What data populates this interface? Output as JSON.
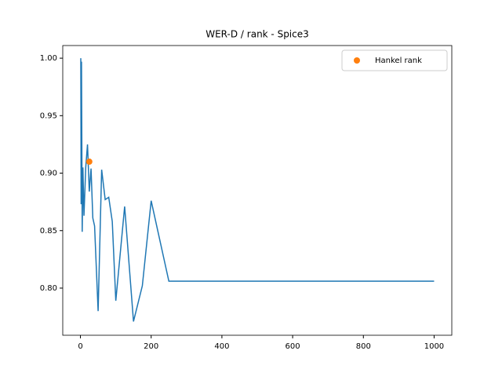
{
  "chart_data": {
    "type": "line",
    "title": "WER-D / rank - Spice3",
    "x": [
      1,
      2,
      3,
      5,
      7,
      10,
      15,
      20,
      25,
      30,
      35,
      40,
      50,
      60,
      70,
      80,
      90,
      100,
      125,
      150,
      175,
      200,
      250,
      1000
    ],
    "series": [
      {
        "name": null,
        "color": "#1f77b4",
        "values": [
          1.0,
          0.873,
          0.997,
          0.849,
          0.905,
          0.863,
          0.905,
          0.925,
          0.884,
          0.904,
          0.861,
          0.854,
          0.78,
          0.903,
          0.877,
          0.879,
          0.858,
          0.789,
          0.871,
          0.771,
          0.802,
          0.876,
          0.806,
          0.806
        ]
      }
    ],
    "points": {
      "name": "Hankel rank",
      "color": "#ff7f0e",
      "x": [
        25
      ],
      "values": [
        0.91
      ]
    },
    "xlim": [
      -50,
      1050
    ],
    "ylim": [
      0.759,
      1.011
    ],
    "xticks": [
      0,
      200,
      400,
      600,
      800,
      1000
    ],
    "yticks": [
      {
        "value": 0.8,
        "label": "0.80"
      },
      {
        "value": 0.85,
        "label": "0.85"
      },
      {
        "value": 0.9,
        "label": "0.90"
      },
      {
        "value": 0.95,
        "label": "0.95"
      },
      {
        "value": 1.0,
        "label": "1.00"
      }
    ],
    "legend": "upper right"
  }
}
